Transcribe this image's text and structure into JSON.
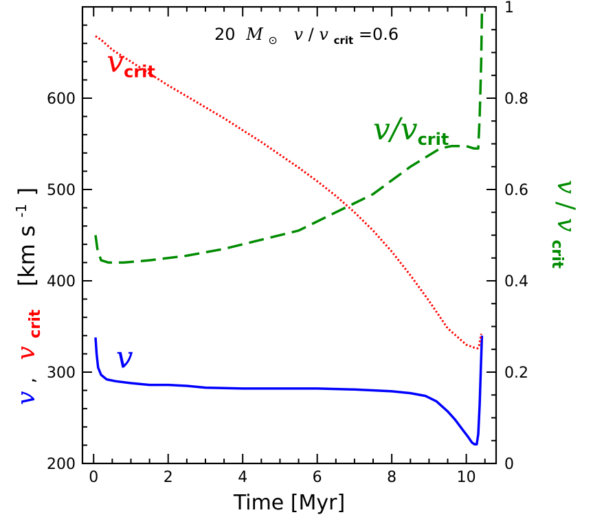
{
  "chart_data": {
    "type": "line",
    "title_parts": {
      "mass": "20",
      "mass_unit": "M",
      "ratio_v": "v",
      "ratio_v2": "v",
      "ratio_sub": "crit",
      "ratio_value": "=0.6"
    },
    "xlabel": "Time [Myr]",
    "ylabel_left": {
      "v": "v",
      "sep": ",",
      "vcrit": "v",
      "vcrit_sub": "crit",
      "unit": "[km s",
      "unit_exp": "-1",
      "unit_close": "]"
    },
    "ylabel_right": {
      "v": "v",
      "slash": "/",
      "v2": "v",
      "sub": "crit"
    },
    "xlim": [
      -0.3,
      10.8
    ],
    "ylim_left": [
      200,
      700
    ],
    "ylim_right": [
      0,
      1
    ],
    "x_ticks": [
      "0",
      "2",
      "4",
      "6",
      "8",
      "10"
    ],
    "y_ticks_left": [
      "200",
      "300",
      "400",
      "500",
      "600"
    ],
    "y_ticks_right": [
      "0",
      "0.2",
      "0.4",
      "0.6",
      "0.8",
      "1"
    ],
    "colors": {
      "v": "#0000ff",
      "vcrit": "#ff0000",
      "ratio": "#008b00",
      "axes": "#000000"
    },
    "series": [
      {
        "name": "v",
        "color": "#0000ff",
        "style": "solid",
        "axis": "left",
        "x": [
          0.05,
          0.08,
          0.12,
          0.2,
          0.35,
          0.6,
          1.0,
          1.5,
          2.0,
          2.5,
          3.0,
          4.0,
          5.0,
          6.0,
          7.0,
          8.0,
          8.5,
          8.9,
          9.2,
          9.5,
          9.7,
          9.9,
          10.05,
          10.15,
          10.22,
          10.28,
          10.32,
          10.36,
          10.39,
          10.42
        ],
        "y": [
          338,
          320,
          305,
          297,
          292,
          290,
          288,
          286,
          286,
          285,
          283,
          282,
          282,
          282,
          281,
          279,
          277,
          274,
          268,
          257,
          248,
          237,
          229,
          223,
          221,
          221,
          232,
          265,
          305,
          340
        ]
      },
      {
        "name": "v_crit",
        "color": "#ff0000",
        "style": "dotted",
        "axis": "left",
        "x": [
          0.05,
          0.2,
          0.5,
          1.0,
          1.5,
          2.0,
          2.5,
          3.0,
          3.5,
          4.0,
          4.5,
          5.0,
          5.5,
          6.0,
          6.5,
          7.0,
          7.5,
          8.0,
          8.5,
          9.0,
          9.5,
          10.0,
          10.2,
          10.3,
          10.35,
          10.4
        ],
        "y": [
          668,
          664,
          653,
          640,
          627,
          614,
          602,
          590,
          578,
          565,
          552,
          538,
          524,
          509,
          493,
          475,
          455,
          432,
          406,
          378,
          348,
          330,
          327,
          326,
          330,
          342
        ]
      },
      {
        "name": "v/v_crit",
        "color": "#008b00",
        "style": "dashed",
        "axis": "right",
        "x": [
          0.05,
          0.1,
          0.2,
          0.4,
          0.8,
          1.5,
          2.5,
          3.5,
          4.5,
          5.5,
          6.5,
          7.0,
          7.5,
          8.0,
          8.5,
          9.0,
          9.3,
          9.6,
          9.85,
          10.0,
          10.2,
          10.32,
          10.36,
          10.4,
          10.42
        ],
        "y": [
          0.5,
          0.47,
          0.445,
          0.44,
          0.44,
          0.445,
          0.455,
          0.47,
          0.49,
          0.51,
          0.55,
          0.57,
          0.59,
          0.62,
          0.65,
          0.675,
          0.69,
          0.695,
          0.695,
          0.695,
          0.69,
          0.69,
          0.76,
          0.88,
          0.99
        ]
      }
    ],
    "annotations": [
      {
        "text": "v",
        "sub": "crit",
        "color": "#ff0000",
        "x": 0.35,
        "y": 629,
        "axis": "left"
      },
      {
        "text": "v/v",
        "sub": "crit",
        "color": "#008b00",
        "x": 7.5,
        "y": 0.71,
        "axis": "right"
      },
      {
        "text": "v",
        "sub": "",
        "color": "#0000ff",
        "x": 0.6,
        "y": 305,
        "axis": "left"
      }
    ]
  }
}
